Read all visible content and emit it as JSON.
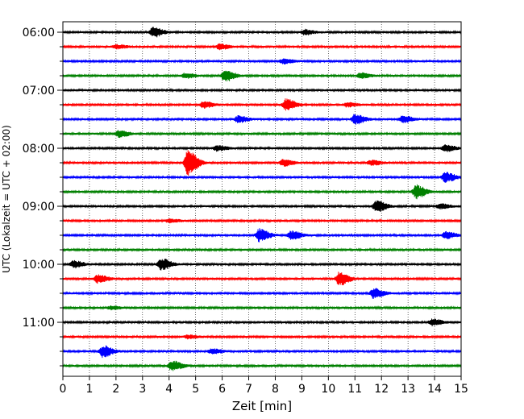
{
  "chart_data": {
    "type": "line",
    "title": "",
    "xlabel": "Zeit  [min]",
    "ylabel": "UTC (Lokalzeit = UTC + 02:00)",
    "xlim": [
      0,
      15
    ],
    "x_ticks": [
      0,
      1,
      2,
      3,
      4,
      5,
      6,
      7,
      8,
      9,
      10,
      11,
      12,
      13,
      14,
      15
    ],
    "hour_labels": [
      "06:00",
      "07:00",
      "08:00",
      "09:00",
      "10:00",
      "11:00"
    ],
    "trace_colors": [
      "#000000",
      "#ff0000",
      "#0000ff",
      "#008000"
    ],
    "grid": "vertical dotted lines at each minute",
    "traces_count": 24,
    "events": [
      {
        "trace": 0,
        "minute": 3.4,
        "amplitude": 6
      },
      {
        "trace": 0,
        "minute": 9.1,
        "amplitude": 3
      },
      {
        "trace": 1,
        "minute": 2.0,
        "amplitude": 2.5
      },
      {
        "trace": 1,
        "minute": 5.9,
        "amplitude": 3
      },
      {
        "trace": 2,
        "minute": 8.3,
        "amplitude": 3
      },
      {
        "trace": 3,
        "minute": 4.6,
        "amplitude": 3
      },
      {
        "trace": 3,
        "minute": 6.1,
        "amplitude": 7
      },
      {
        "trace": 3,
        "minute": 11.2,
        "amplitude": 3
      },
      {
        "trace": 5,
        "minute": 5.3,
        "amplitude": 4
      },
      {
        "trace": 5,
        "minute": 8.4,
        "amplitude": 7
      },
      {
        "trace": 5,
        "minute": 10.7,
        "amplitude": 2.5
      },
      {
        "trace": 6,
        "minute": 6.6,
        "amplitude": 4
      },
      {
        "trace": 6,
        "minute": 11.0,
        "amplitude": 6
      },
      {
        "trace": 6,
        "minute": 12.8,
        "amplitude": 4
      },
      {
        "trace": 7,
        "minute": 2.1,
        "amplitude": 4
      },
      {
        "trace": 8,
        "minute": 5.8,
        "amplitude": 3
      },
      {
        "trace": 8,
        "minute": 14.4,
        "amplitude": 4
      },
      {
        "trace": 9,
        "minute": 4.7,
        "amplitude": 15
      },
      {
        "trace": 9,
        "minute": 8.3,
        "amplitude": 4
      },
      {
        "trace": 9,
        "minute": 11.6,
        "amplitude": 3
      },
      {
        "trace": 10,
        "minute": 14.4,
        "amplitude": 6
      },
      {
        "trace": 11,
        "minute": 13.3,
        "amplitude": 8
      },
      {
        "trace": 12,
        "minute": 11.8,
        "amplitude": 7
      },
      {
        "trace": 12,
        "minute": 14.2,
        "amplitude": 3
      },
      {
        "trace": 13,
        "minute": 4.0,
        "amplitude": 2
      },
      {
        "trace": 14,
        "minute": 7.4,
        "amplitude": 8
      },
      {
        "trace": 14,
        "minute": 8.6,
        "amplitude": 5
      },
      {
        "trace": 14,
        "minute": 14.4,
        "amplitude": 4
      },
      {
        "trace": 16,
        "minute": 0.4,
        "amplitude": 4
      },
      {
        "trace": 16,
        "minute": 3.7,
        "amplitude": 7
      },
      {
        "trace": 17,
        "minute": 1.3,
        "amplitude": 5
      },
      {
        "trace": 17,
        "minute": 10.4,
        "amplitude": 8
      },
      {
        "trace": 18,
        "minute": 11.7,
        "amplitude": 6
      },
      {
        "trace": 19,
        "minute": 1.8,
        "amplitude": 2
      },
      {
        "trace": 20,
        "minute": 13.9,
        "amplitude": 4
      },
      {
        "trace": 21,
        "minute": 4.7,
        "amplitude": 2
      },
      {
        "trace": 22,
        "minute": 1.5,
        "amplitude": 7
      },
      {
        "trace": 22,
        "minute": 5.6,
        "amplitude": 3
      },
      {
        "trace": 23,
        "minute": 4.1,
        "amplitude": 6
      }
    ]
  }
}
